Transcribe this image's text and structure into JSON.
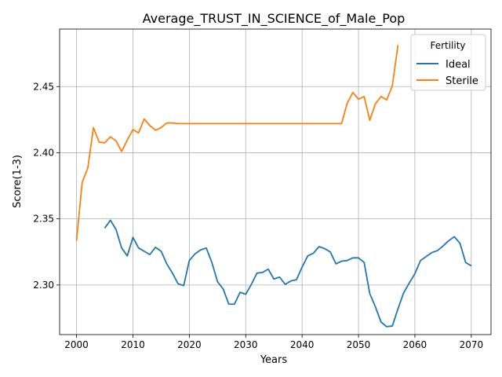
{
  "chart_data": {
    "type": "line",
    "title": "Average_TRUST_IN_SCIENCE_of_Male_Pop",
    "xlabel": "Years",
    "ylabel": "Score(1-3)",
    "xlim": [
      1997,
      2073.5
    ],
    "ylim": [
      2.2625,
      2.4935
    ],
    "x_ticks": [
      2000,
      2010,
      2020,
      2030,
      2040,
      2050,
      2060,
      2070
    ],
    "y_ticks": [
      2.3,
      2.35,
      2.4,
      2.45
    ],
    "y_tick_labels": [
      "2.30",
      "2.35",
      "2.40",
      "2.45"
    ],
    "grid": true,
    "legend": {
      "title": "Fertility",
      "placement": "top-right"
    },
    "series": [
      {
        "name": "Ideal",
        "color": "#1f77b4",
        "x": [
          2005,
          2006,
          2007,
          2008,
          2009,
          2010,
          2011,
          2012,
          2013,
          2014,
          2015,
          2016,
          2017,
          2018,
          2019,
          2020,
          2021,
          2022,
          2023,
          2024,
          2025,
          2026,
          2027,
          2028,
          2029,
          2030,
          2031,
          2032,
          2033,
          2034,
          2035,
          2036,
          2037,
          2038,
          2039,
          2040,
          2041,
          2042,
          2043,
          2044,
          2045,
          2046,
          2047,
          2048,
          2049,
          2050,
          2051,
          2052,
          2053,
          2054,
          2055,
          2056,
          2057,
          2058,
          2059,
          2060,
          2061,
          2062,
          2063,
          2064,
          2065,
          2066,
          2067,
          2068,
          2069,
          2070
        ],
        "values": [
          2.343,
          2.349,
          2.342,
          2.328,
          2.322,
          2.336,
          2.328,
          2.3255,
          2.323,
          2.3285,
          2.3255,
          2.316,
          2.309,
          2.301,
          2.2995,
          2.3185,
          2.3235,
          2.3265,
          2.328,
          2.317,
          2.3025,
          2.297,
          2.2855,
          2.2855,
          2.2945,
          2.293,
          2.3005,
          2.309,
          2.3095,
          2.312,
          2.3045,
          2.306,
          2.3005,
          2.303,
          2.304,
          2.3135,
          2.322,
          2.324,
          2.329,
          2.3275,
          2.325,
          2.316,
          2.318,
          2.3185,
          2.3205,
          2.3205,
          2.317,
          2.2935,
          2.2835,
          2.272,
          2.2685,
          2.269,
          2.282,
          2.294,
          2.3015,
          2.3085,
          2.3185,
          2.3215,
          2.3245,
          2.326,
          2.3295,
          2.3335,
          2.3365,
          2.3315,
          2.317,
          2.3145
        ]
      },
      {
        "name": "Sterile",
        "color": "#ff7f0e",
        "x": [
          2000,
          2001,
          2002,
          2003,
          2004,
          2005,
          2006,
          2007,
          2008,
          2009,
          2010,
          2011,
          2012,
          2013,
          2014,
          2015,
          2016,
          2017,
          2018,
          2019,
          2020,
          2047,
          2048,
          2049,
          2050,
          2051,
          2052,
          2053,
          2054,
          2055,
          2056,
          2057
        ],
        "values": [
          2.3335,
          2.3775,
          2.3885,
          2.419,
          2.408,
          2.4075,
          2.412,
          2.409,
          2.401,
          2.4095,
          2.4175,
          2.415,
          2.4255,
          2.4205,
          2.417,
          2.419,
          2.4225,
          2.4225,
          2.422,
          2.422,
          2.422,
          2.422,
          2.4375,
          2.4455,
          2.4405,
          2.4425,
          2.4245,
          2.437,
          2.4425,
          2.44,
          2.4505,
          2.4815
        ]
      }
    ]
  }
}
